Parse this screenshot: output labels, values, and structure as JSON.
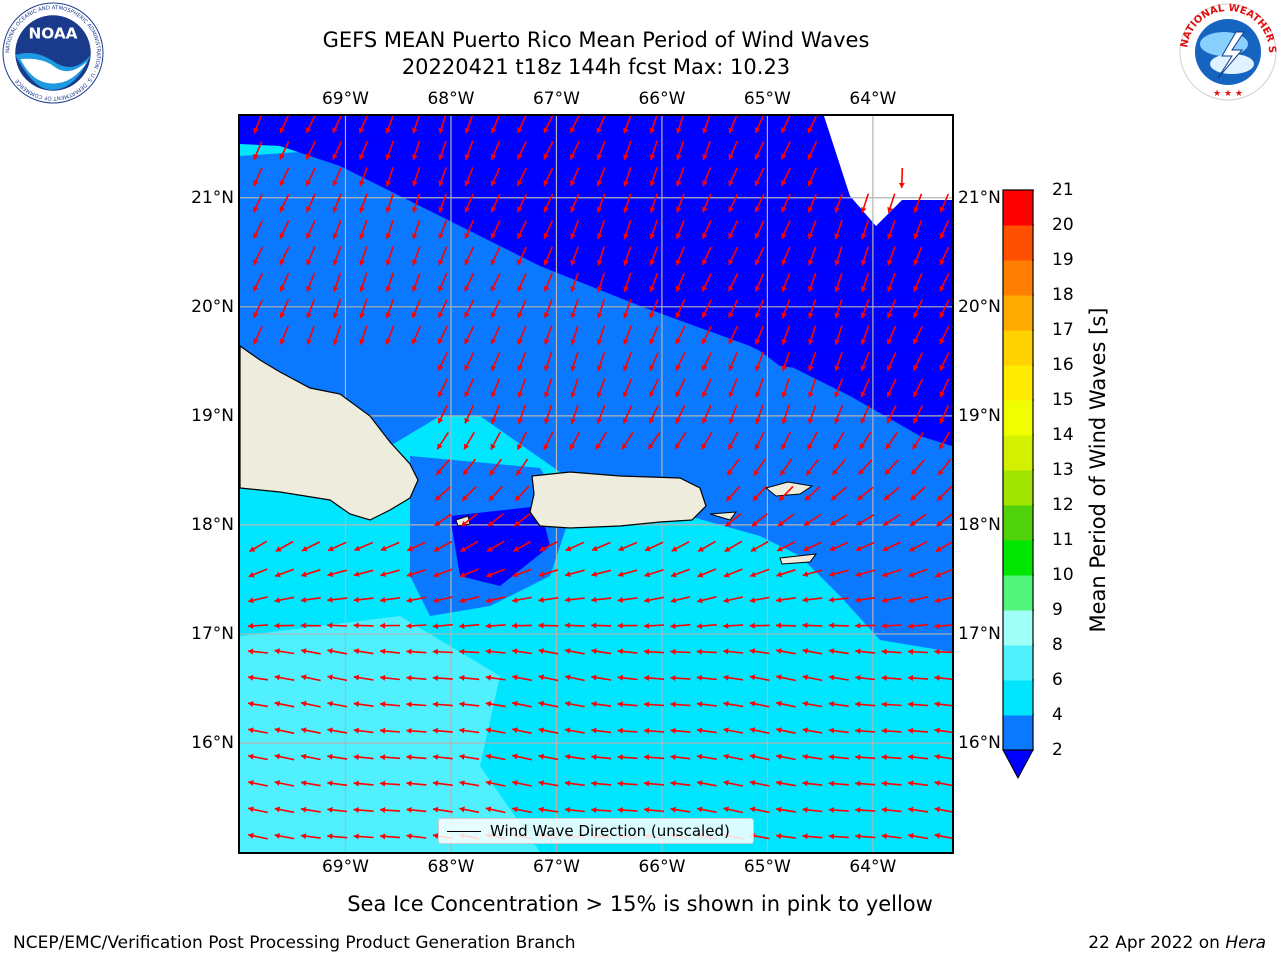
{
  "title": {
    "line1": "GEFS MEAN Puerto Rico Mean Period of Wind Waves",
    "line2": "20220421 t18z 144h fcst   Max: 10.23"
  },
  "map": {
    "region": "Puerto Rico",
    "lon_range": [
      -70.0,
      -63.25
    ],
    "lat_range": [
      15.0,
      21.75
    ],
    "lon_ticks": [
      {
        "value": -69,
        "label": "69°W"
      },
      {
        "value": -68,
        "label": "68°W"
      },
      {
        "value": -67,
        "label": "67°W"
      },
      {
        "value": -66,
        "label": "66°W"
      },
      {
        "value": -65,
        "label": "65°W"
      },
      {
        "value": -64,
        "label": "64°W"
      }
    ],
    "lat_ticks": [
      {
        "value": 21,
        "label": "21°N"
      },
      {
        "value": 20,
        "label": "20°N"
      },
      {
        "value": 19,
        "label": "19°N"
      },
      {
        "value": 18,
        "label": "18°N"
      },
      {
        "value": 17,
        "label": "17°N"
      },
      {
        "value": 16,
        "label": "16°N"
      }
    ],
    "grid": true,
    "legend_label": "Wind Wave Direction (unscaled)",
    "arrow_color": "#ff0000",
    "land_color": "#eeecdc"
  },
  "colorbar": {
    "title": "Mean Period of Wind Waves [s]",
    "levels": [
      2,
      4,
      6,
      8,
      9,
      10,
      11,
      12,
      13,
      14,
      15,
      16,
      17,
      18,
      19,
      20,
      21
    ],
    "under_color": "#0000ff",
    "colors": [
      "#0a78ff",
      "#00e6ff",
      "#50f0ff",
      "#a0fff6",
      "#50f57a",
      "#00e600",
      "#50d20a",
      "#a0e600",
      "#d2f000",
      "#f0ff00",
      "#ffeb00",
      "#ffd200",
      "#ffaa00",
      "#ff7d00",
      "#ff5000",
      "#ff0000"
    ],
    "labels": [
      "2",
      "4",
      "6",
      "8",
      "9",
      "10",
      "11",
      "12",
      "13",
      "14",
      "15",
      "16",
      "17",
      "18",
      "19",
      "20",
      "21"
    ]
  },
  "logos": {
    "noaa_text": "NOAA",
    "noaa_ring": "NATIONAL OCEANIC AND ATMOSPHERIC ADMINISTRATION · U.S. DEPARTMENT OF COMMERCE",
    "nws_ring": "NATIONAL WEATHER SERVICE"
  },
  "annotation": "Sea Ice Concentration > 15% is shown in pink to yellow",
  "footer": {
    "left": "NCEP/EMC/Verification Post Processing Product Generation Branch",
    "date": "22 Apr 2022 on ",
    "host": "Hera"
  }
}
